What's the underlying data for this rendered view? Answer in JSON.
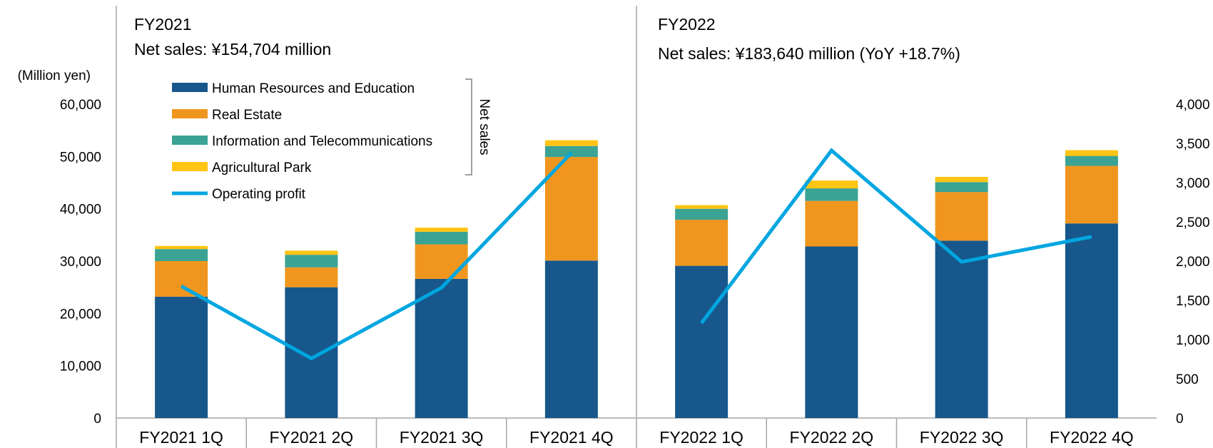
{
  "chart_data": {
    "type": "bar",
    "panels": [
      {
        "title": "FY2021",
        "subtitle": "Net sales: ¥154,704 million"
      },
      {
        "title": "FY2022",
        "subtitle": "Net sales: ¥183,640 million (YoY +18.7%)"
      }
    ],
    "categories": [
      "FY2021 1Q",
      "FY2021 2Q",
      "FY2021 3Q",
      "FY2021 4Q",
      "FY2022 1Q",
      "FY2022 2Q",
      "FY2022 3Q",
      "FY2022 4Q"
    ],
    "y_left": {
      "unit_label": "(Million yen)",
      "ylim": [
        0,
        60000
      ],
      "ticks": [
        "60,000",
        "50,000",
        "40,000",
        "30,000",
        "20,000",
        "10,000",
        "0"
      ]
    },
    "y_right": {
      "ylim": [
        0,
        4000
      ],
      "ticks": [
        "4,000",
        "3,500",
        "3,000",
        "2,500",
        "2,000",
        "1,500",
        "1,000",
        "500",
        "0"
      ]
    },
    "series": [
      {
        "name": "Human Resources and Education",
        "kind": "bar",
        "color": "#17578B",
        "values": [
          23200,
          25000,
          26600,
          30100,
          29100,
          32800,
          33900,
          37200
        ]
      },
      {
        "name": "Real Estate",
        "kind": "bar",
        "color": "#F0961E",
        "values": [
          6800,
          3800,
          6600,
          19800,
          8800,
          8700,
          9300,
          11000
        ]
      },
      {
        "name": "Information and Telecommunications",
        "kind": "bar",
        "color": "#3AA394",
        "values": [
          2300,
          2400,
          2400,
          2100,
          2100,
          2400,
          1900,
          1900
        ]
      },
      {
        "name": "Agricultural Park",
        "kind": "bar",
        "color": "#FFC414",
        "values": [
          600,
          800,
          800,
          1100,
          700,
          1500,
          1000,
          1100
        ]
      },
      {
        "name": "Operating profit",
        "kind": "line",
        "axis": "right",
        "color": "#00A6E0",
        "values": [
          1680,
          760,
          1660,
          3380,
          1210,
          3410,
          1990,
          2310
        ]
      }
    ],
    "legend": {
      "position": "top-left",
      "bracket_label": "Net sales"
    },
    "grid": false
  }
}
